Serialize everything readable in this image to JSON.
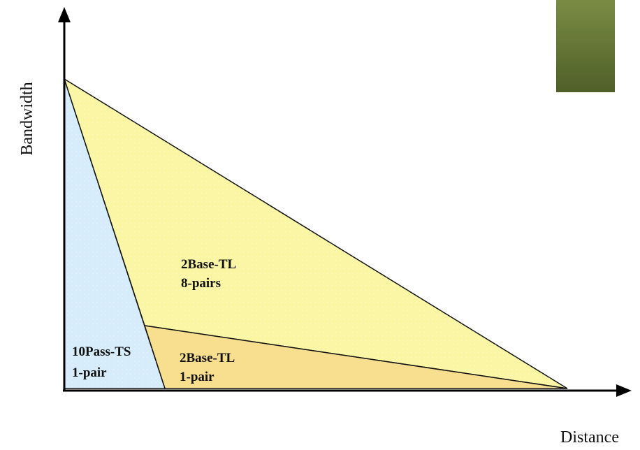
{
  "axes": {
    "y_label": "Bandwidth",
    "x_label": "Distance"
  },
  "regions": [
    {
      "id": "10pass-ts",
      "line1": "10Pass-TS",
      "line2": "1-pair",
      "fill": "#d6ecfa"
    },
    {
      "id": "2base-tl-8",
      "line1": "2Base-TL",
      "line2": "8-pairs",
      "fill": "#fbf6a4"
    },
    {
      "id": "2base-tl-1",
      "line1": "2Base-TL",
      "line2": "1-pair",
      "fill": "#f7df8f"
    }
  ],
  "colors": {
    "axis": "#000000",
    "edge": "#111111",
    "accent_box_top": "#7a8c44",
    "accent_box_bottom": "#4f5f28"
  }
}
